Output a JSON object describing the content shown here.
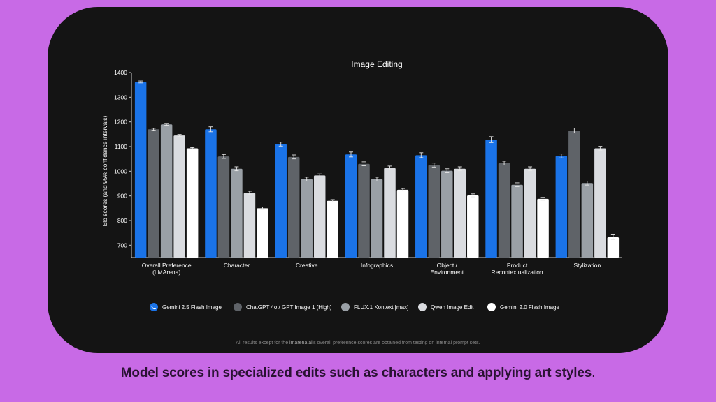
{
  "caption": "Model scores in specialized edits such as characters and applying art styles",
  "caption_period": ".",
  "footnote": {
    "before": "All results except for the ",
    "link": "lmarena.ai",
    "after": "'s overall preference scores are obtained from testing on internal prompt sets."
  },
  "colors": {
    "page_background": "#c86ae6",
    "panel_background": "#141414",
    "series": [
      "#1a73e8",
      "#5f6368",
      "#9aa0a6",
      "#dadce0",
      "#ffffff"
    ]
  },
  "chart_data": {
    "type": "bar",
    "title": "Image Editing",
    "ylabel": "Elo scores (and 95% confidence intervals)",
    "xlabel": "",
    "ylim": [
      650,
      1400
    ],
    "yticks": [
      700,
      800,
      900,
      1000,
      1100,
      1200,
      1300,
      1400
    ],
    "categories": [
      [
        "Overall Preference",
        "(LMArena)"
      ],
      [
        "Character"
      ],
      [
        "Creative"
      ],
      [
        "Infographics"
      ],
      [
        "Object /",
        "Environment"
      ],
      [
        "Product",
        "Recontextualization"
      ],
      [
        "Stylization"
      ]
    ],
    "series": [
      {
        "name": "Gemini 2.5 Flash Image",
        "color": "#1a73e8",
        "icon": "banana-icon",
        "values": [
          1362,
          1170,
          1110,
          1068,
          1065,
          1128,
          1062
        ],
        "ci": [
          4,
          10,
          8,
          10,
          10,
          12,
          8
        ]
      },
      {
        "name": "ChatGPT 4o / GPT Image 1 (High)",
        "color": "#5f6368",
        "values": [
          1170,
          1060,
          1058,
          1030,
          1025,
          1033,
          1165
        ],
        "ci": [
          4,
          8,
          8,
          8,
          8,
          8,
          10
        ]
      },
      {
        "name": "FLUX.1 Kontext [max]",
        "color": "#9aa0a6",
        "values": [
          1190,
          1010,
          968,
          968,
          1002,
          945,
          952
        ],
        "ci": [
          4,
          8,
          8,
          8,
          8,
          8,
          8
        ]
      },
      {
        "name": "Qwen Image Edit",
        "color": "#dadce0",
        "values": [
          1145,
          912,
          983,
          1013,
          1010,
          1010,
          1093
        ],
        "ci": [
          4,
          7,
          6,
          8,
          8,
          8,
          8
        ]
      },
      {
        "name": "Gemini 2.0 Flash Image",
        "color": "#ffffff",
        "values": [
          1093,
          850,
          880,
          925,
          902,
          888,
          732
        ],
        "ci": [
          3,
          5,
          5,
          5,
          6,
          6,
          10
        ]
      }
    ],
    "grid": false,
    "legend_position": "bottom"
  }
}
